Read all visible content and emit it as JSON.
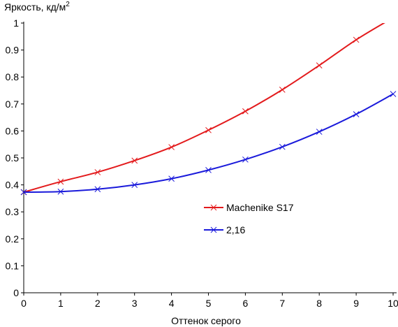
{
  "chart_data": {
    "type": "line",
    "xlabel": "Оттенок серого",
    "ylabel_text": "Яркость, кд/м",
    "ylabel_superscript": "2",
    "xlim": [
      0,
      10
    ],
    "ylim": [
      0,
      1
    ],
    "x_ticks": [
      0,
      1,
      2,
      3,
      4,
      5,
      6,
      7,
      8,
      9,
      10
    ],
    "x_tick_labels": [
      "0",
      "1",
      "2",
      "3",
      "4",
      "5",
      "6",
      "7",
      "8",
      "9",
      "10"
    ],
    "y_ticks": [
      0,
      0.1,
      0.2,
      0.3,
      0.4,
      0.5,
      0.6,
      0.7,
      0.8,
      0.9,
      1
    ],
    "y_tick_labels": [
      "0",
      "0.1",
      "0.2",
      "0.3",
      "0.4",
      "0.5",
      "0.6",
      "0.7",
      "0.8",
      "0.9",
      "1"
    ],
    "grid": false,
    "legend_position": "center-right",
    "series": [
      {
        "name": "Machenike S17",
        "color": "#e31a1c",
        "marker": "x",
        "x": [
          0,
          1,
          2,
          3,
          4,
          5,
          6,
          7,
          8,
          9,
          10
        ],
        "y": [
          0.373,
          0.412,
          0.447,
          0.49,
          0.54,
          0.603,
          0.673,
          0.753,
          0.843,
          0.938,
          1.02
        ]
      },
      {
        "name": "2,16",
        "color": "#1a1adb",
        "marker": "x",
        "x": [
          0,
          1,
          2,
          3,
          4,
          5,
          6,
          7,
          8,
          9,
          10
        ],
        "y": [
          0.373,
          0.375,
          0.384,
          0.4,
          0.423,
          0.455,
          0.494,
          0.541,
          0.597,
          0.662,
          0.737
        ]
      }
    ]
  }
}
